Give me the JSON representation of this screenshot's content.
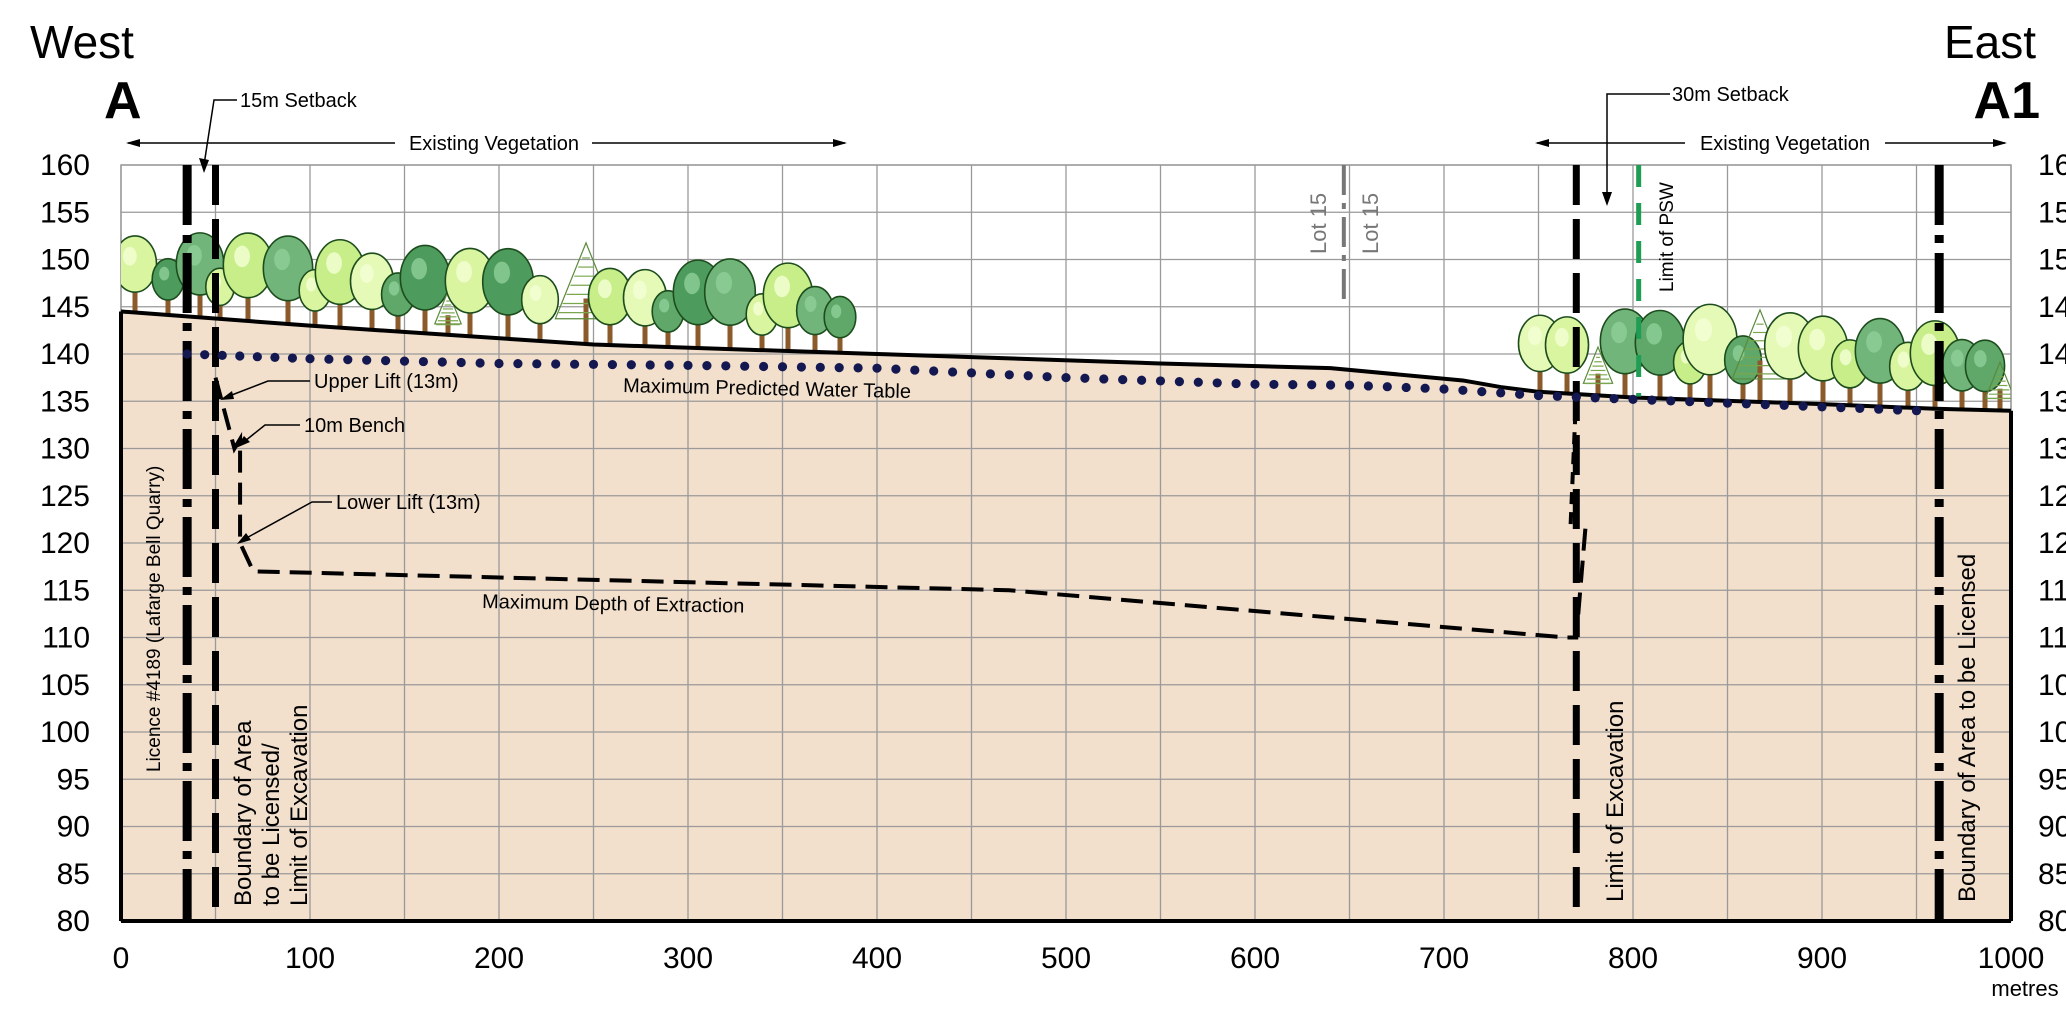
{
  "header": {
    "west_label": "West",
    "west_marker": "A",
    "east_label": "East",
    "east_marker": "A1"
  },
  "y_axis": {
    "ticks": [
      "160",
      "155",
      "150",
      "145",
      "140",
      "135",
      "130",
      "125",
      "120",
      "115",
      "110",
      "105",
      "100",
      "95",
      "90",
      "85",
      "80"
    ],
    "right_ticks_partial": [
      "16",
      "15",
      "15",
      "14",
      "14",
      "13",
      "13",
      "12",
      "12",
      "11",
      "11",
      "10",
      "10",
      "95",
      "90",
      "85",
      "80"
    ]
  },
  "x_axis": {
    "ticks": [
      "0",
      "100",
      "200",
      "300",
      "400",
      "500",
      "600",
      "700",
      "800",
      "900",
      "1000"
    ],
    "unit_label": "metres"
  },
  "annotations": {
    "setback_west": "15m Setback",
    "setback_east": "30m Setback",
    "vegetation_west": "Existing Vegetation",
    "vegetation_east": "Existing Vegetation",
    "lot_left": "Lot 15",
    "lot_right": "Lot 15",
    "limit_psw": "Limit of PSW",
    "upper_lift": "Upper Lift (13m)",
    "bench": "10m Bench",
    "lower_lift": "Lower Lift (13m)",
    "water_table": "Maximum Predicted Water Table",
    "max_depth": "Maximum Depth of Extraction",
    "licence": "Licence #4189 (Lafarge Bell Quarry)",
    "boundary_west_1": "Boundary of Area",
    "boundary_west_2": "to be Licensed/",
    "boundary_west_3": "Limit of Excavation",
    "limit_east": "Limit of Excavation",
    "boundary_east": "Boundary of Area to be Licensed"
  },
  "chart_data": {
    "type": "cross-section",
    "xlim": [
      0,
      1000
    ],
    "ylim": [
      80,
      160
    ],
    "ground_surface": {
      "x": [
        0,
        100,
        250,
        400,
        550,
        640,
        710,
        730,
        750,
        800,
        900,
        960,
        1000
      ],
      "y": [
        144.5,
        143,
        141,
        140,
        139,
        138.5,
        137.2,
        136.5,
        136,
        135.4,
        134.7,
        134.2,
        134
      ]
    },
    "water_table": {
      "x": [
        35,
        100,
        200,
        300,
        400,
        500,
        600,
        650,
        700,
        750,
        800,
        900,
        950
      ],
      "y": [
        140,
        139.5,
        139,
        138.8,
        138.5,
        137.5,
        136.8,
        136.7,
        136.3,
        135.6,
        135.2,
        134.4,
        134
      ]
    },
    "extraction_floor": {
      "x": [
        50,
        60,
        60,
        63,
        63,
        70,
        470,
        765,
        770,
        775
      ],
      "y": [
        137.5,
        130,
        130,
        131,
        120,
        117,
        115,
        110,
        110,
        122
      ]
    },
    "vertical_lines_x": {
      "licence": 35,
      "boundary_west": 50,
      "lot": 647,
      "limit_east": 770,
      "psw": 803,
      "boundary_east": 962
    }
  }
}
